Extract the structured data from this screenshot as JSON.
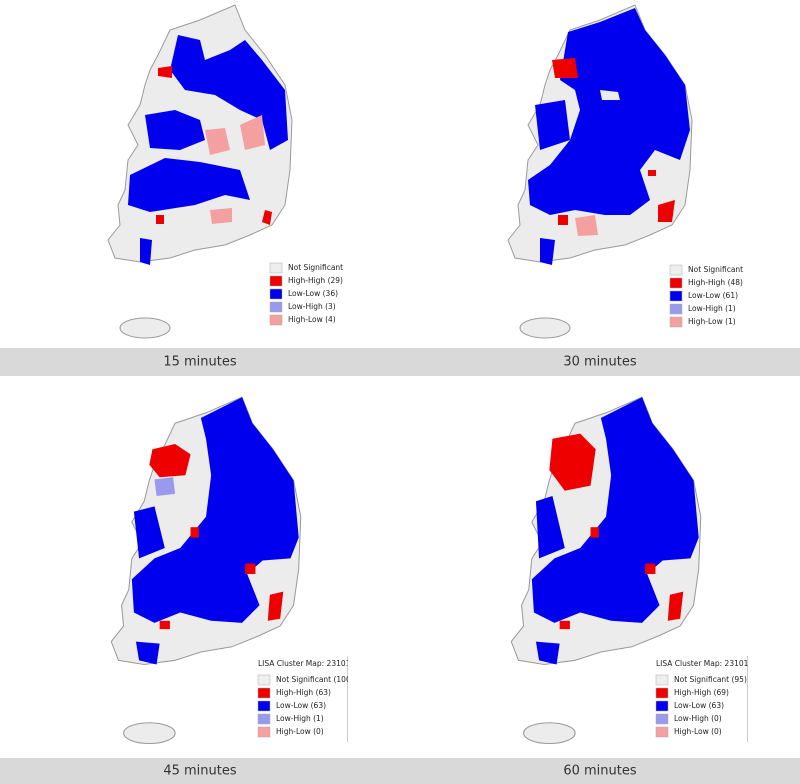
{
  "panels": [
    {
      "caption": "15 minutes",
      "legend": {
        "items": [
          {
            "label": "Not Significant",
            "color": "#eeeeee"
          },
          {
            "label": "High-High (29)",
            "color": "#ee0000"
          },
          {
            "label": "Low-Low (36)",
            "color": "#0000ee"
          },
          {
            "label": "Low-High (3)",
            "color": "#9999ee"
          },
          {
            "label": "High-Low (4)",
            "color": "#f4a0a0"
          }
        ]
      }
    },
    {
      "caption": "30 minutes",
      "legend": {
        "items": [
          {
            "label": "Not Significant",
            "color": "#eeeeee"
          },
          {
            "label": "High-High (48)",
            "color": "#ee0000"
          },
          {
            "label": "Low-Low (61)",
            "color": "#0000ee"
          },
          {
            "label": "Low-High (1)",
            "color": "#9999ee"
          },
          {
            "label": "High-Low (1)",
            "color": "#f4a0a0"
          }
        ]
      }
    },
    {
      "caption": "45 minutes",
      "legend": {
        "title": "LISA Cluster Map: 23101",
        "items": [
          {
            "label": "Not Significant (100",
            "color": "#eeeeee"
          },
          {
            "label": "High-High (63)",
            "color": "#ee0000"
          },
          {
            "label": "Low-Low (63)",
            "color": "#0000ee"
          },
          {
            "label": "Low-High (1)",
            "color": "#9999ee"
          },
          {
            "label": "High-Low (0)",
            "color": "#f4a0a0"
          }
        ]
      }
    },
    {
      "caption": "60 minutes",
      "legend": {
        "title": "LISA Cluster Map: 23101",
        "items": [
          {
            "label": "Not Significant (95)",
            "color": "#eeeeee"
          },
          {
            "label": "High-High (69)",
            "color": "#ee0000"
          },
          {
            "label": "Low-Low (63)",
            "color": "#0000ee"
          },
          {
            "label": "Low-High (0)",
            "color": "#9999ee"
          },
          {
            "label": "High-Low (0)",
            "color": "#f4a0a0"
          }
        ]
      }
    }
  ]
}
